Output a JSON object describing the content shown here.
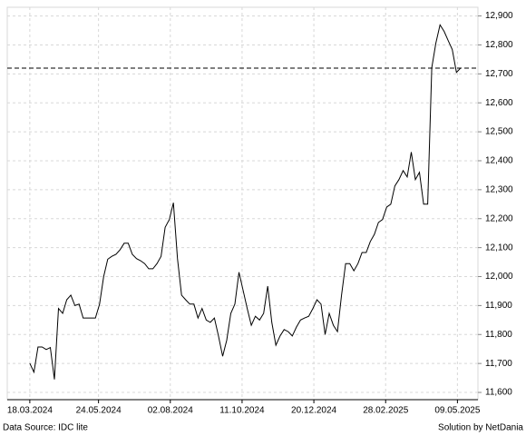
{
  "chart_data": {
    "type": "line",
    "x": [
      "18.03.2024",
      "22.03.2024",
      "26.03.2024",
      "30.03.2024",
      "03.04.2024",
      "07.04.2024",
      "11.04.2024",
      "15.04.2024",
      "19.04.2024",
      "23.04.2024",
      "27.04.2024",
      "01.05.2024",
      "05.05.2024",
      "09.05.2024",
      "13.05.2024",
      "17.05.2024",
      "21.05.2024",
      "25.05.2024",
      "29.05.2024",
      "02.06.2024",
      "06.06.2024",
      "10.06.2024",
      "14.06.2024",
      "18.06.2024",
      "22.06.2024",
      "26.06.2024",
      "30.06.2024",
      "04.07.2024",
      "08.07.2024",
      "12.07.2024",
      "16.07.2024",
      "20.07.2024",
      "24.07.2024",
      "28.07.2024",
      "01.08.2024",
      "05.08.2024",
      "09.08.2024",
      "13.08.2024",
      "17.08.2024",
      "21.08.2024",
      "25.08.2024",
      "29.08.2024",
      "02.09.2024",
      "06.09.2024",
      "10.09.2024",
      "14.09.2024",
      "18.09.2024",
      "22.09.2024",
      "26.09.2024",
      "30.09.2024",
      "04.10.2024",
      "08.10.2024",
      "12.10.2024",
      "16.10.2024",
      "20.10.2024",
      "24.10.2024",
      "28.10.2024",
      "01.11.2024",
      "05.11.2024",
      "09.11.2024",
      "13.11.2024",
      "17.11.2024",
      "21.11.2024",
      "25.11.2024",
      "29.11.2024",
      "03.12.2024",
      "07.12.2024",
      "11.12.2024",
      "15.12.2024",
      "19.12.2024",
      "23.12.2024",
      "27.12.2024",
      "31.12.2024",
      "04.01.2025",
      "08.01.2025",
      "12.01.2025",
      "16.01.2025",
      "20.01.2025",
      "24.01.2025",
      "28.01.2025",
      "01.02.2025",
      "05.02.2025",
      "09.02.2025",
      "13.02.2025",
      "17.02.2025",
      "21.02.2025",
      "25.02.2025",
      "01.03.2025",
      "05.03.2025",
      "09.03.2025",
      "13.03.2025",
      "17.03.2025",
      "21.03.2025",
      "25.03.2025",
      "29.03.2025",
      "02.04.2025",
      "06.04.2025",
      "10.04.2025",
      "14.04.2025",
      "18.04.2025",
      "22.04.2025",
      "26.04.2025",
      "30.04.2025",
      "04.05.2025",
      "08.05.2025",
      "12.05.2025"
    ],
    "series": [
      {
        "color": "#000000",
        "values": [
          11700,
          11670,
          11757,
          11757,
          11748,
          11755,
          11645,
          11890,
          11873,
          11920,
          11936,
          11900,
          11905,
          11857,
          11857,
          11857,
          11857,
          11905,
          12000,
          12060,
          12070,
          12077,
          12093,
          12115,
          12115,
          12077,
          12062,
          12055,
          12045,
          12027,
          12027,
          12045,
          12070,
          12170,
          12197,
          12255,
          12062,
          11936,
          11920,
          11905,
          11905,
          11857,
          11890,
          11850,
          11842,
          11857,
          11795,
          11725,
          11780,
          11873,
          11905,
          12015,
          11952,
          11890,
          11832,
          11863,
          11850,
          11873,
          11967,
          11842,
          11763,
          11795,
          11817,
          11810,
          11795,
          11826,
          11850,
          11857,
          11863,
          11890,
          11920,
          11905,
          11800,
          11873,
          11832,
          11810,
          11936,
          12045,
          12045,
          12020,
          12045,
          12083,
          12083,
          12121,
          12146,
          12187,
          12197,
          12240,
          12250,
          12313,
          12335,
          12366,
          12344,
          12430,
          12335,
          12360,
          12250,
          12250,
          12721,
          12806,
          12869,
          12847,
          12815,
          12784,
          12705,
          12720
        ]
      }
    ],
    "xlim": [
      "25.02.2024",
      "29.05.2025"
    ],
    "xticks": [
      "18.03.2024",
      "24.05.2024",
      "02.08.2024",
      "11.10.2024",
      "20.12.2024",
      "28.02.2025",
      "09.05.2025"
    ],
    "ylim": [
      11575,
      12930
    ],
    "yticks": [
      {
        "value": 11600,
        "label": "11,600"
      },
      {
        "value": 11700,
        "label": "11,700"
      },
      {
        "value": 11800,
        "label": "11,800"
      },
      {
        "value": 11900,
        "label": "11,900"
      },
      {
        "value": 12000,
        "label": "12,000"
      },
      {
        "value": 12100,
        "label": "12,100"
      },
      {
        "value": 12200,
        "label": "12,200"
      },
      {
        "value": 12300,
        "label": "12,300"
      },
      {
        "value": 12400,
        "label": "12,400"
      },
      {
        "value": 12500,
        "label": "12,500"
      },
      {
        "value": 12600,
        "label": "12,600"
      },
      {
        "value": 12700,
        "label": "12,700"
      },
      {
        "value": 12800,
        "label": "12,800"
      },
      {
        "value": 12900,
        "label": "12,900"
      }
    ],
    "grid": true,
    "reference_line": 12720,
    "source": "Data Source: IDC lite",
    "credit": "Solution by NetDania"
  }
}
